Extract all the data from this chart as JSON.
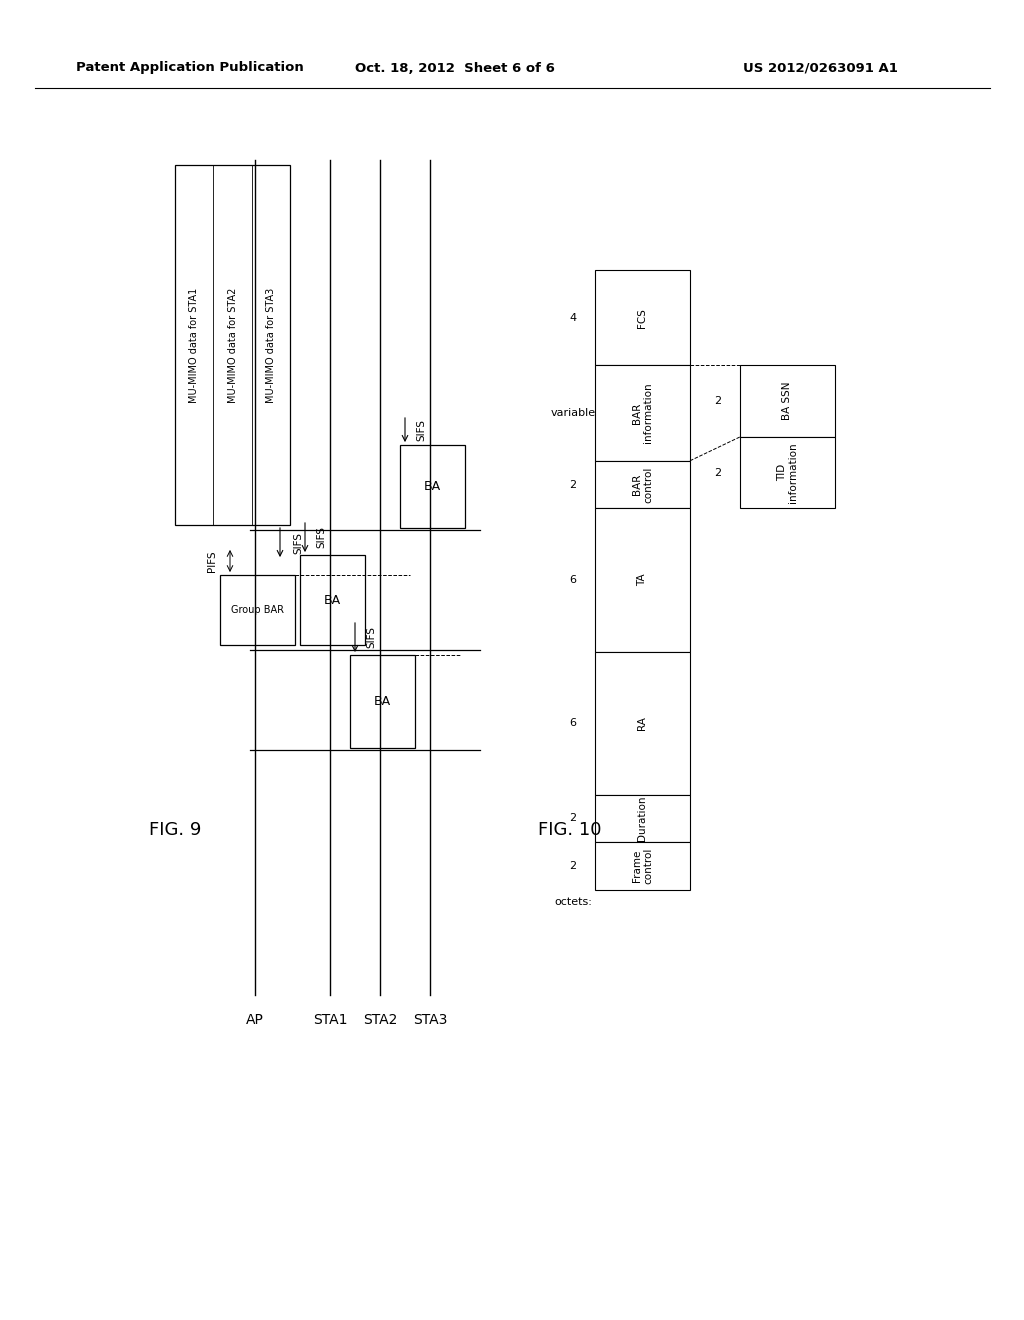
{
  "header_left": "Patent Application Publication",
  "header_mid": "Oct. 18, 2012  Sheet 6 of 6",
  "header_right": "US 2012/0263091 A1",
  "fig9_label": "FIG. 9",
  "fig10_label": "FIG. 10",
  "background": "#ffffff",
  "text_color": "#000000",
  "col_labels": [
    "AP",
    "STA1",
    "STA2",
    "STA3"
  ],
  "mimo_labels": [
    "MU-MIMO data for STA1",
    "MU-MIMO data for STA2",
    "MU-MIMO data for STA3"
  ],
  "table_fields": [
    "Frame\ncontrol",
    "Duration",
    "RA",
    "TA",
    "BAR\ncontrol",
    "BAR\ninformation",
    "FCS"
  ],
  "table_widths_units": [
    2,
    2,
    6,
    6,
    2,
    4,
    4
  ],
  "table_labels_above": [
    "2",
    "2",
    "6",
    "6",
    "2",
    "variable",
    "4"
  ],
  "table_subfields": [
    "TID\ninformation",
    "BA SSN"
  ],
  "table_sub_labels": [
    "2",
    "2"
  ],
  "octets_label": "octets:"
}
